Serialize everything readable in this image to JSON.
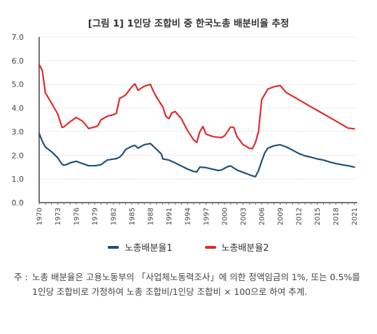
{
  "title": "[그림 1] 1인당 조합비 중 한국노총 배분비율 추정",
  "note_label": "주 :",
  "note_text": "노총 배분율은 고용노동부의 「사업체노동력조사」에 의한 정액임금의 1%, 또는 0.5%를 1인당 조합비로 가정하여 노총 조합비/1인당 조합비 × 100으로 하여 추계.",
  "colors": {
    "series1": "#1f4e79",
    "series2": "#e02a2a",
    "grid": "#cfcfcf",
    "axis": "#222222"
  },
  "chart_data": {
    "type": "line",
    "title": "[그림 1] 1인당 조합비 중 한국노총 배분비율 추정",
    "xlabel": "",
    "ylabel": "",
    "ylim": [
      0,
      7
    ],
    "yticks": [
      "0.0",
      "1.0",
      "2.0",
      "3.0",
      "4.0",
      "5.0",
      "6.0",
      "7.0"
    ],
    "xticks": [
      "1970",
      "1973",
      "1976",
      "1979",
      "1982",
      "1985",
      "1988",
      "1991",
      "1994",
      "1997",
      "2000",
      "2003",
      "2006",
      "2009",
      "2012",
      "2015",
      "2018",
      "2021"
    ],
    "xlim": [
      1970,
      2021.5
    ],
    "grid": true,
    "legend_position": "bottom",
    "series": [
      {
        "name": "노총배분율1",
        "x": [
          1970,
          1970.5,
          1971,
          1972,
          1973,
          1973.7,
          1974,
          1974.5,
          1975,
          1976,
          1977,
          1978,
          1979,
          1980,
          1981,
          1982,
          1982.5,
          1983,
          1983.5,
          1984,
          1985,
          1985.5,
          1986,
          1987,
          1988,
          1989,
          1989.8,
          1990,
          1991,
          1992,
          1993,
          1994,
          1995,
          1995.5,
          1996,
          1997,
          1998,
          1999,
          1999.5,
          2000,
          2000.5,
          2001,
          2002,
          2003,
          2004,
          2004.5,
          2005,
          2005.5,
          2006,
          2006.5,
          2007,
          2008,
          2009,
          2010,
          2011,
          2012,
          2013,
          2014,
          2015,
          2016,
          2017,
          2018,
          2019,
          2020,
          2021
        ],
        "values": [
          2.93,
          2.6,
          2.35,
          2.15,
          1.9,
          1.62,
          1.58,
          1.62,
          1.68,
          1.75,
          1.65,
          1.56,
          1.56,
          1.6,
          1.8,
          1.84,
          1.86,
          1.92,
          2.05,
          2.25,
          2.38,
          2.42,
          2.3,
          2.45,
          2.5,
          2.25,
          2.05,
          1.85,
          1.8,
          1.68,
          1.55,
          1.42,
          1.32,
          1.3,
          1.5,
          1.48,
          1.42,
          1.36,
          1.38,
          1.45,
          1.52,
          1.55,
          1.38,
          1.28,
          1.18,
          1.13,
          1.1,
          1.35,
          1.75,
          2.1,
          2.3,
          2.4,
          2.45,
          2.35,
          2.22,
          2.08,
          1.98,
          1.92,
          1.85,
          1.8,
          1.72,
          1.65,
          1.6,
          1.56,
          1.5
        ]
      },
      {
        "name": "노총배분율2",
        "x": [
          1970,
          1970.5,
          1971,
          1972,
          1973,
          1973.7,
          1974,
          1975,
          1976,
          1977,
          1977.5,
          1978,
          1979,
          1979.5,
          1980,
          1981,
          1982,
          1982.5,
          1983,
          1984,
          1985,
          1985.5,
          1986,
          1987,
          1988,
          1988.5,
          1989,
          1990,
          1990.5,
          1991,
          1991.5,
          1992,
          1993,
          1994,
          1995,
          1995.5,
          1996,
          1996.5,
          1997,
          1998,
          1999,
          1999.5,
          2000,
          2001,
          2001.5,
          2002,
          2003,
          2004,
          2004.5,
          2005,
          2005.5,
          2006,
          2007,
          2008,
          2009,
          2010,
          2011,
          2012,
          2013,
          2014,
          2015,
          2016,
          2017,
          2018,
          2019,
          2020,
          2021
        ],
        "values": [
          5.83,
          5.6,
          4.65,
          4.2,
          3.75,
          3.18,
          3.2,
          3.42,
          3.6,
          3.45,
          3.3,
          3.13,
          3.2,
          3.25,
          3.5,
          3.65,
          3.72,
          3.78,
          4.4,
          4.55,
          4.9,
          5.02,
          4.75,
          4.92,
          5.0,
          4.7,
          4.45,
          4.05,
          3.65,
          3.55,
          3.8,
          3.85,
          3.55,
          3.05,
          2.65,
          2.55,
          3.0,
          3.22,
          2.9,
          2.8,
          2.76,
          2.75,
          2.82,
          3.2,
          3.18,
          2.8,
          2.45,
          2.3,
          2.28,
          2.55,
          3.0,
          4.35,
          4.8,
          4.9,
          4.95,
          4.65,
          4.5,
          4.35,
          4.2,
          4.05,
          3.9,
          3.75,
          3.6,
          3.45,
          3.3,
          3.15,
          3.12
        ]
      }
    ]
  }
}
